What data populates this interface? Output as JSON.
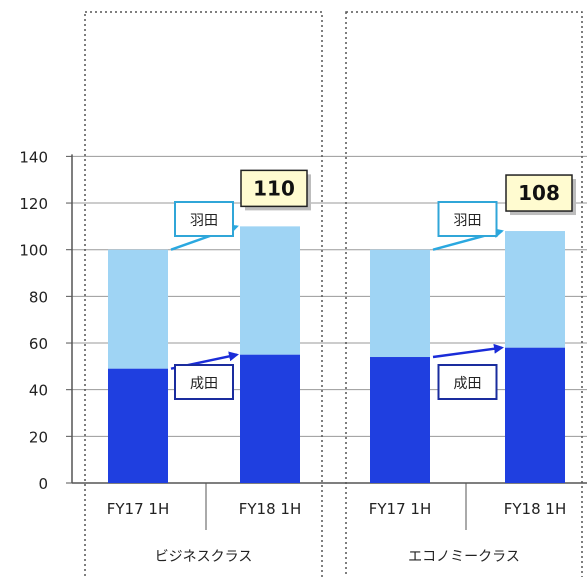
{
  "chart_data": {
    "type": "bar",
    "stacked": true,
    "ylim": [
      0,
      140
    ],
    "yticks": [
      0,
      20,
      40,
      60,
      80,
      100,
      120,
      140
    ],
    "grid": true,
    "groups": [
      {
        "name": "ビジネスクラス",
        "total_label": "110",
        "inner_labels": {
          "upper": "羽田",
          "lower": "成田"
        },
        "categories": [
          "FY17 1H",
          "FY18 1H"
        ],
        "series": [
          {
            "name": "成田",
            "values": [
              49,
              55
            ],
            "color": "#1f3fe0"
          },
          {
            "name": "羽田",
            "values": [
              51,
              55
            ],
            "color": "#9fd4f4"
          }
        ]
      },
      {
        "name": "エコノミークラス",
        "total_label": "108",
        "inner_labels": {
          "upper": "羽田",
          "lower": "成田"
        },
        "categories": [
          "FY17 1H",
          "FY18 1H"
        ],
        "series": [
          {
            "name": "成田",
            "values": [
              54,
              58
            ],
            "color": "#1f3fe0"
          },
          {
            "name": "羽田",
            "values": [
              46,
              50
            ],
            "color": "#9fd4f4"
          }
        ]
      }
    ],
    "colors": {
      "narita": "#1f3fe0",
      "haneda": "#9fd4f4",
      "callout_bg": "#fffbd0",
      "narita_label_border": "#1a2c9e",
      "haneda_label_border": "#30a6d8",
      "arrow_upper": "#2aa8e0",
      "arrow_lower": "#1a2cd8"
    }
  }
}
